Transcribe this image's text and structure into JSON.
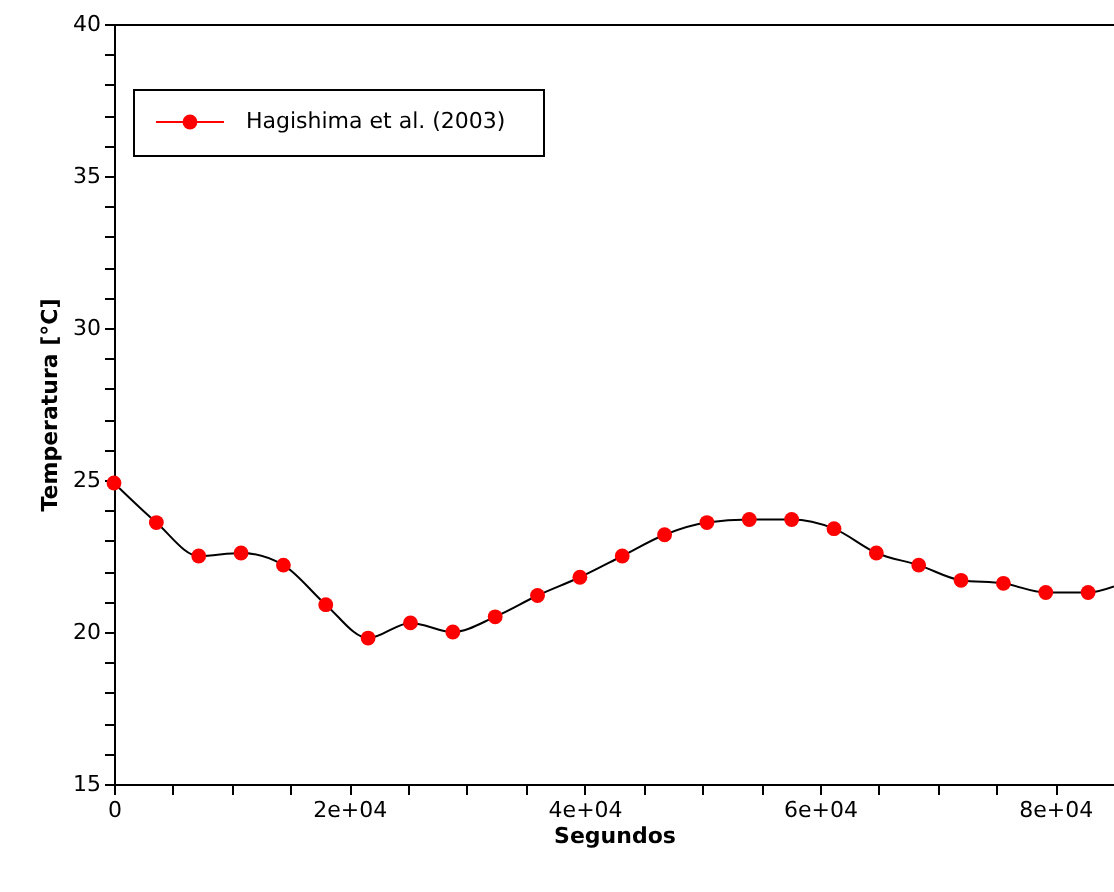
{
  "chart_data": {
    "type": "line",
    "xlabel": "Segundos",
    "ylabel": "Temperatura [°C]",
    "xlim": [
      0,
      85000
    ],
    "ylim": [
      15,
      40
    ],
    "xticks": [
      0,
      {
        "value": 5000,
        "label": null
      },
      {
        "value": 10000,
        "label": null
      },
      {
        "value": 15000,
        "label": null
      },
      {
        "value": 20000,
        "label": "2e+04"
      },
      {
        "value": 25000,
        "label": null
      },
      {
        "value": 30000,
        "label": null
      },
      {
        "value": 35000,
        "label": null
      },
      {
        "value": 40000,
        "label": "4e+04"
      },
      {
        "value": 45000,
        "label": null
      },
      {
        "value": 50000,
        "label": null
      },
      {
        "value": 55000,
        "label": null
      },
      {
        "value": 60000,
        "label": "6e+04"
      },
      {
        "value": 65000,
        "label": null
      },
      {
        "value": 70000,
        "label": null
      },
      {
        "value": 75000,
        "label": null
      },
      {
        "value": 80000,
        "label": "8e+04"
      },
      {
        "value": 85000,
        "label": null
      }
    ],
    "yticks": [
      15,
      {
        "value": 16,
        "label": null
      },
      {
        "value": 17,
        "label": null
      },
      {
        "value": 18,
        "label": null
      },
      {
        "value": 19,
        "label": null
      },
      20,
      {
        "value": 21,
        "label": null
      },
      {
        "value": 22,
        "label": null
      },
      {
        "value": 23,
        "label": null
      },
      {
        "value": 24,
        "label": null
      },
      25,
      {
        "value": 26,
        "label": null
      },
      {
        "value": 27,
        "label": null
      },
      {
        "value": 28,
        "label": null
      },
      {
        "value": 29,
        "label": null
      },
      30,
      {
        "value": 31,
        "label": null
      },
      {
        "value": 32,
        "label": null
      },
      {
        "value": 33,
        "label": null
      },
      {
        "value": 34,
        "label": null
      },
      35,
      {
        "value": 36,
        "label": null
      },
      {
        "value": 37,
        "label": null
      },
      {
        "value": 38,
        "label": null
      },
      {
        "value": 39,
        "label": null
      },
      40
    ],
    "grid": false,
    "legend": "top left",
    "series": [
      {
        "color": "#000000",
        "marker": "none",
        "x": [
          0,
          3600,
          7200,
          10800,
          14400,
          18000,
          21600,
          25200,
          28800,
          32400,
          36000,
          39600,
          43200,
          46800,
          50400,
          54000,
          57600,
          61200,
          64800,
          68400,
          72000,
          75600,
          79200,
          82800,
          85000
        ],
        "values": [
          24.9,
          23.6,
          22.5,
          22.6,
          22.2,
          20.9,
          19.8,
          20.3,
          20.0,
          20.5,
          21.2,
          21.8,
          22.5,
          23.2,
          23.6,
          23.7,
          23.7,
          23.4,
          22.6,
          22.2,
          21.7,
          21.6,
          21.3,
          21.3,
          21.5
        ]
      },
      {
        "type": "scatter",
        "name": "Hagishima et al. (2003)",
        "color": "#ff0000",
        "marker": "circle",
        "x": [
          0,
          3600,
          7200,
          10800,
          14400,
          18000,
          21600,
          25200,
          28800,
          32400,
          36000,
          39600,
          43200,
          46800,
          50400,
          54000,
          57600,
          61200,
          64800,
          68400,
          72000,
          75600,
          79200,
          82800
        ],
        "values": [
          24.9,
          23.6,
          22.5,
          22.6,
          22.2,
          20.9,
          19.8,
          20.3,
          20.0,
          20.5,
          21.2,
          21.8,
          22.5,
          23.2,
          23.6,
          23.7,
          23.7,
          23.4,
          22.6,
          22.2,
          21.7,
          21.6,
          21.3,
          21.3
        ]
      }
    ]
  }
}
